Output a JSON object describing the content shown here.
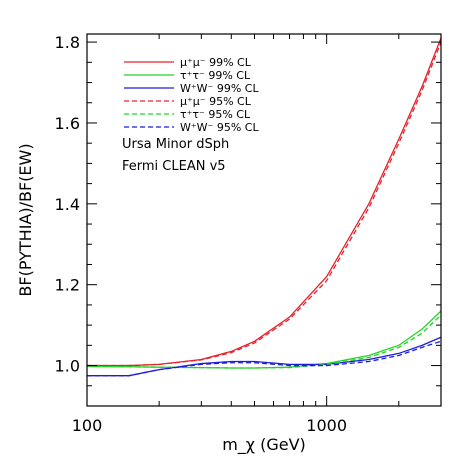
{
  "chart_data": {
    "type": "line",
    "xlabel": "m_χ (GeV)",
    "ylabel": "BF(PYTHIA)/BF(EW)",
    "xscale": "log",
    "xlim": [
      100,
      3000
    ],
    "ylim": [
      0.9,
      1.82
    ],
    "grid": false,
    "legend_position": "top-left",
    "x_ticks": [
      100,
      1000
    ],
    "x_tick_labels": [
      "100",
      "1000"
    ],
    "y_ticks": [
      1.0,
      1.2,
      1.4,
      1.6,
      1.8
    ],
    "y_tick_labels": [
      "1.0",
      "1.2",
      "1.4",
      "1.6",
      "1.8"
    ],
    "annotations": [
      "Ursa Minor dSph",
      "Fermi CLEAN v5"
    ],
    "series": [
      {
        "name": "μ⁺μ⁻ 99% CL",
        "color": "#e8212b",
        "dash": "solid",
        "x": [
          100,
          150,
          200,
          300,
          400,
          500,
          700,
          1000,
          1500,
          2000,
          2500,
          3000
        ],
        "y": [
          1.0,
          1.0,
          1.003,
          1.015,
          1.035,
          1.06,
          1.12,
          1.22,
          1.4,
          1.56,
          1.69,
          1.81
        ]
      },
      {
        "name": "τ⁺τ⁻ 99% CL",
        "color": "#22d422",
        "dash": "solid",
        "x": [
          100,
          150,
          200,
          300,
          400,
          500,
          700,
          1000,
          1500,
          2000,
          2500,
          3000
        ],
        "y": [
          0.998,
          0.997,
          0.996,
          0.995,
          0.994,
          0.994,
          0.996,
          1.005,
          1.025,
          1.05,
          1.09,
          1.135
        ]
      },
      {
        "name": "W⁺W⁻ 99% CL",
        "color": "#1c1ce0",
        "dash": "solid",
        "x": [
          100,
          150,
          200,
          300,
          400,
          500,
          700,
          1000,
          1500,
          2000,
          2500,
          3000
        ],
        "y": [
          0.975,
          0.975,
          0.99,
          1.005,
          1.01,
          1.01,
          1.003,
          1.003,
          1.015,
          1.03,
          1.05,
          1.07
        ]
      },
      {
        "name": "μ⁺μ⁻ 95% CL",
        "color": "#e8212b",
        "dash": "dashed",
        "x": [
          100,
          150,
          200,
          300,
          400,
          500,
          700,
          1000,
          1500,
          2000,
          2500,
          3000
        ],
        "y": [
          1.0,
          1.0,
          1.003,
          1.014,
          1.032,
          1.056,
          1.115,
          1.21,
          1.39,
          1.55,
          1.68,
          1.8
        ]
      },
      {
        "name": "τ⁺τ⁻ 95% CL",
        "color": "#22d422",
        "dash": "dashed",
        "x": [
          100,
          150,
          200,
          300,
          400,
          500,
          700,
          1000,
          1500,
          2000,
          2500,
          3000
        ],
        "y": [
          0.998,
          0.997,
          0.996,
          0.995,
          0.994,
          0.994,
          0.995,
          1.003,
          1.02,
          1.045,
          1.08,
          1.125
        ]
      },
      {
        "name": "W⁺W⁻ 95% CL",
        "color": "#1c1ce0",
        "dash": "dashed",
        "x": [
          100,
          150,
          200,
          300,
          400,
          500,
          700,
          1000,
          1500,
          2000,
          2500,
          3000
        ],
        "y": [
          0.975,
          0.975,
          0.99,
          1.003,
          1.007,
          1.007,
          1.0,
          1.0,
          1.01,
          1.025,
          1.045,
          1.06
        ]
      }
    ]
  }
}
